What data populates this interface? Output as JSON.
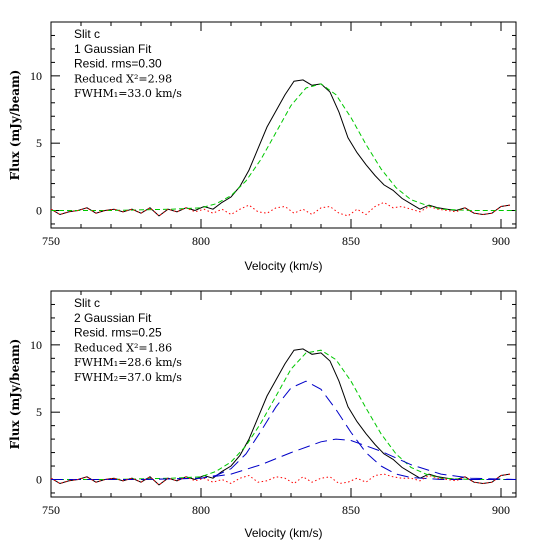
{
  "chart_data": [
    {
      "type": "line",
      "xlabel": "Velocity (km/s)",
      "ylabel": "Flux (mJy/beam)",
      "xlim": [
        750,
        905
      ],
      "ylim": [
        -1.3,
        14
      ],
      "xticks": [
        750,
        800,
        850,
        900
      ],
      "yticks": [
        0,
        5,
        10
      ],
      "annotations": [
        "Slit c",
        "1 Gaussian Fit",
        "Resid. rms=0.30",
        "Reduced X²=2.98",
        "FWHM₁=33.0 km/s"
      ],
      "series": [
        {
          "color": "#000000",
          "style": "solid",
          "x": [
            750,
            753,
            756,
            759,
            762,
            765,
            768,
            771,
            774,
            777,
            780,
            783,
            786,
            789,
            792,
            795,
            798,
            801,
            804,
            807,
            810,
            813,
            816,
            819,
            822,
            825,
            828,
            831,
            834,
            837,
            840,
            843,
            846,
            849,
            852,
            855,
            858,
            861,
            864,
            867,
            870,
            873,
            876,
            879,
            882,
            885,
            888,
            891,
            894,
            897,
            900,
            903
          ],
          "y": [
            0.1,
            -0.3,
            -0.1,
            0.0,
            0.2,
            -0.2,
            0.0,
            0.1,
            -0.1,
            0.1,
            -0.2,
            0.2,
            -0.4,
            0.1,
            -0.1,
            0.2,
            0.0,
            0.3,
            0.1,
            0.6,
            1.0,
            1.8,
            3.0,
            4.6,
            6.2,
            7.4,
            8.6,
            9.6,
            9.7,
            9.3,
            9.4,
            8.8,
            7.3,
            5.4,
            4.3,
            3.4,
            2.6,
            1.9,
            1.5,
            0.9,
            0.5,
            0.1,
            0.4,
            0.2,
            0.1,
            0.0,
            0.2,
            -0.2,
            -0.3,
            -0.2,
            0.3,
            0.4
          ]
        },
        {
          "color": "#00c800",
          "style": "dashed",
          "x": [
            750,
            770,
            790,
            800,
            805,
            810,
            815,
            820,
            825,
            830,
            835,
            840,
            845,
            850,
            855,
            860,
            865,
            870,
            875,
            880,
            890,
            905
          ],
          "y": [
            0,
            0,
            0.1,
            0.2,
            0.5,
            1.1,
            2.2,
            3.8,
            5.8,
            7.8,
            9.1,
            9.4,
            8.6,
            6.9,
            4.9,
            3.1,
            1.7,
            0.8,
            0.4,
            0.1,
            0,
            0
          ]
        },
        {
          "color": "#ff0000",
          "style": "dotted",
          "x": [
            750,
            753,
            756,
            759,
            762,
            765,
            768,
            771,
            774,
            777,
            780,
            783,
            786,
            789,
            792,
            795,
            798,
            801,
            804,
            807,
            810,
            813,
            816,
            819,
            822,
            825,
            828,
            831,
            834,
            837,
            840,
            843,
            846,
            849,
            852,
            855,
            858,
            861,
            864,
            867,
            870,
            873,
            876,
            879,
            882,
            885,
            888,
            891,
            894,
            897,
            900,
            903
          ],
          "y": [
            0.1,
            -0.3,
            -0.1,
            0.0,
            0.2,
            -0.2,
            0.0,
            0.1,
            -0.1,
            0.1,
            -0.2,
            0.2,
            -0.4,
            0.1,
            -0.1,
            0.2,
            -0.1,
            0.1,
            -0.2,
            0.1,
            -0.3,
            0.1,
            0.4,
            -0.1,
            -0.2,
            0.2,
            0.3,
            -0.2,
            0.1,
            -0.3,
            0.2,
            0.3,
            -0.2,
            -0.4,
            0.1,
            -0.3,
            0.3,
            0.6,
            0.2,
            0.3,
            0.1,
            -0.1,
            0.3,
            0.1,
            0.0,
            -0.1,
            0.2,
            -0.2,
            -0.3,
            -0.2,
            0.3,
            0.4
          ]
        }
      ]
    },
    {
      "type": "line",
      "xlabel": "Velocity (km/s)",
      "ylabel": "Flux (mJy/beam)",
      "xlim": [
        750,
        905
      ],
      "ylim": [
        -1.3,
        14
      ],
      "xticks": [
        750,
        800,
        850,
        900
      ],
      "yticks": [
        0,
        5,
        10
      ],
      "annotations": [
        "Slit c",
        "2 Gaussian Fit",
        "Resid. rms=0.25",
        "Reduced X²=1.86",
        "FWHM₁=28.6 km/s",
        "FWHM₂=37.0 km/s"
      ],
      "series": [
        {
          "color": "#000000",
          "style": "solid",
          "x": [
            750,
            753,
            756,
            759,
            762,
            765,
            768,
            771,
            774,
            777,
            780,
            783,
            786,
            789,
            792,
            795,
            798,
            801,
            804,
            807,
            810,
            813,
            816,
            819,
            822,
            825,
            828,
            831,
            834,
            837,
            840,
            843,
            846,
            849,
            852,
            855,
            858,
            861,
            864,
            867,
            870,
            873,
            876,
            879,
            882,
            885,
            888,
            891,
            894,
            897,
            900,
            903
          ],
          "y": [
            0.1,
            -0.3,
            -0.1,
            0.0,
            0.2,
            -0.2,
            0.0,
            0.1,
            -0.1,
            0.1,
            -0.2,
            0.2,
            -0.4,
            0.1,
            -0.1,
            0.2,
            0.0,
            0.3,
            0.1,
            0.6,
            1.0,
            1.8,
            3.0,
            4.6,
            6.2,
            7.4,
            8.6,
            9.6,
            9.7,
            9.3,
            9.4,
            8.8,
            7.3,
            5.4,
            4.3,
            3.4,
            2.6,
            1.9,
            1.5,
            0.9,
            0.5,
            0.1,
            0.4,
            0.2,
            0.1,
            0.0,
            0.2,
            -0.2,
            -0.3,
            -0.2,
            0.3,
            0.4
          ]
        },
        {
          "color": "#00c800",
          "style": "dashed",
          "x": [
            750,
            770,
            790,
            800,
            805,
            810,
            815,
            820,
            825,
            830,
            835,
            840,
            845,
            850,
            855,
            860,
            865,
            870,
            875,
            880,
            890,
            905
          ],
          "y": [
            0,
            0,
            0.1,
            0.2,
            0.6,
            1.3,
            2.5,
            4.2,
            6.2,
            8.2,
            9.4,
            9.6,
            8.9,
            7.3,
            5.3,
            3.4,
            1.9,
            0.9,
            0.4,
            0.1,
            0,
            0
          ]
        },
        {
          "color": "#0000c8",
          "style": "longdash",
          "x": [
            750,
            780,
            800,
            805,
            810,
            815,
            820,
            825,
            830,
            835,
            840,
            845,
            850,
            855,
            860,
            865,
            870,
            880,
            905
          ],
          "y": [
            0,
            0,
            0.1,
            0.3,
            0.8,
            1.9,
            3.6,
            5.4,
            6.8,
            7.3,
            6.7,
            5.2,
            3.5,
            2.0,
            1.0,
            0.4,
            0.15,
            0,
            0
          ]
        },
        {
          "color": "#0000c8",
          "style": "longdash",
          "x": [
            750,
            780,
            800,
            810,
            820,
            830,
            840,
            845,
            850,
            860,
            870,
            880,
            890,
            905
          ],
          "y": [
            0,
            0,
            0.1,
            0.4,
            1.1,
            2.0,
            2.8,
            3.0,
            2.9,
            2.1,
            1.1,
            0.4,
            0.1,
            0
          ]
        },
        {
          "color": "#ff0000",
          "style": "dotted",
          "x": [
            750,
            753,
            756,
            759,
            762,
            765,
            768,
            771,
            774,
            777,
            780,
            783,
            786,
            789,
            792,
            795,
            798,
            801,
            804,
            807,
            810,
            813,
            816,
            819,
            822,
            825,
            828,
            831,
            834,
            837,
            840,
            843,
            846,
            849,
            852,
            855,
            858,
            861,
            864,
            867,
            870,
            873,
            876,
            879,
            882,
            885,
            888,
            891,
            894,
            897,
            900,
            903
          ],
          "y": [
            0.1,
            -0.3,
            -0.1,
            0.0,
            0.2,
            -0.2,
            0.0,
            0.1,
            -0.1,
            0.1,
            -0.2,
            0.2,
            -0.4,
            0.1,
            -0.1,
            0.2,
            -0.1,
            0.1,
            -0.2,
            0.0,
            -0.3,
            0.1,
            0.3,
            -0.2,
            -0.1,
            0.2,
            0.1,
            -0.3,
            0.2,
            -0.2,
            0.1,
            0.2,
            -0.3,
            -0.2,
            0.1,
            -0.2,
            0.3,
            0.4,
            0.2,
            0.1,
            0.1,
            -0.1,
            0.3,
            0.1,
            0.0,
            -0.1,
            0.2,
            -0.2,
            -0.3,
            -0.2,
            0.3,
            0.4
          ]
        }
      ]
    }
  ]
}
